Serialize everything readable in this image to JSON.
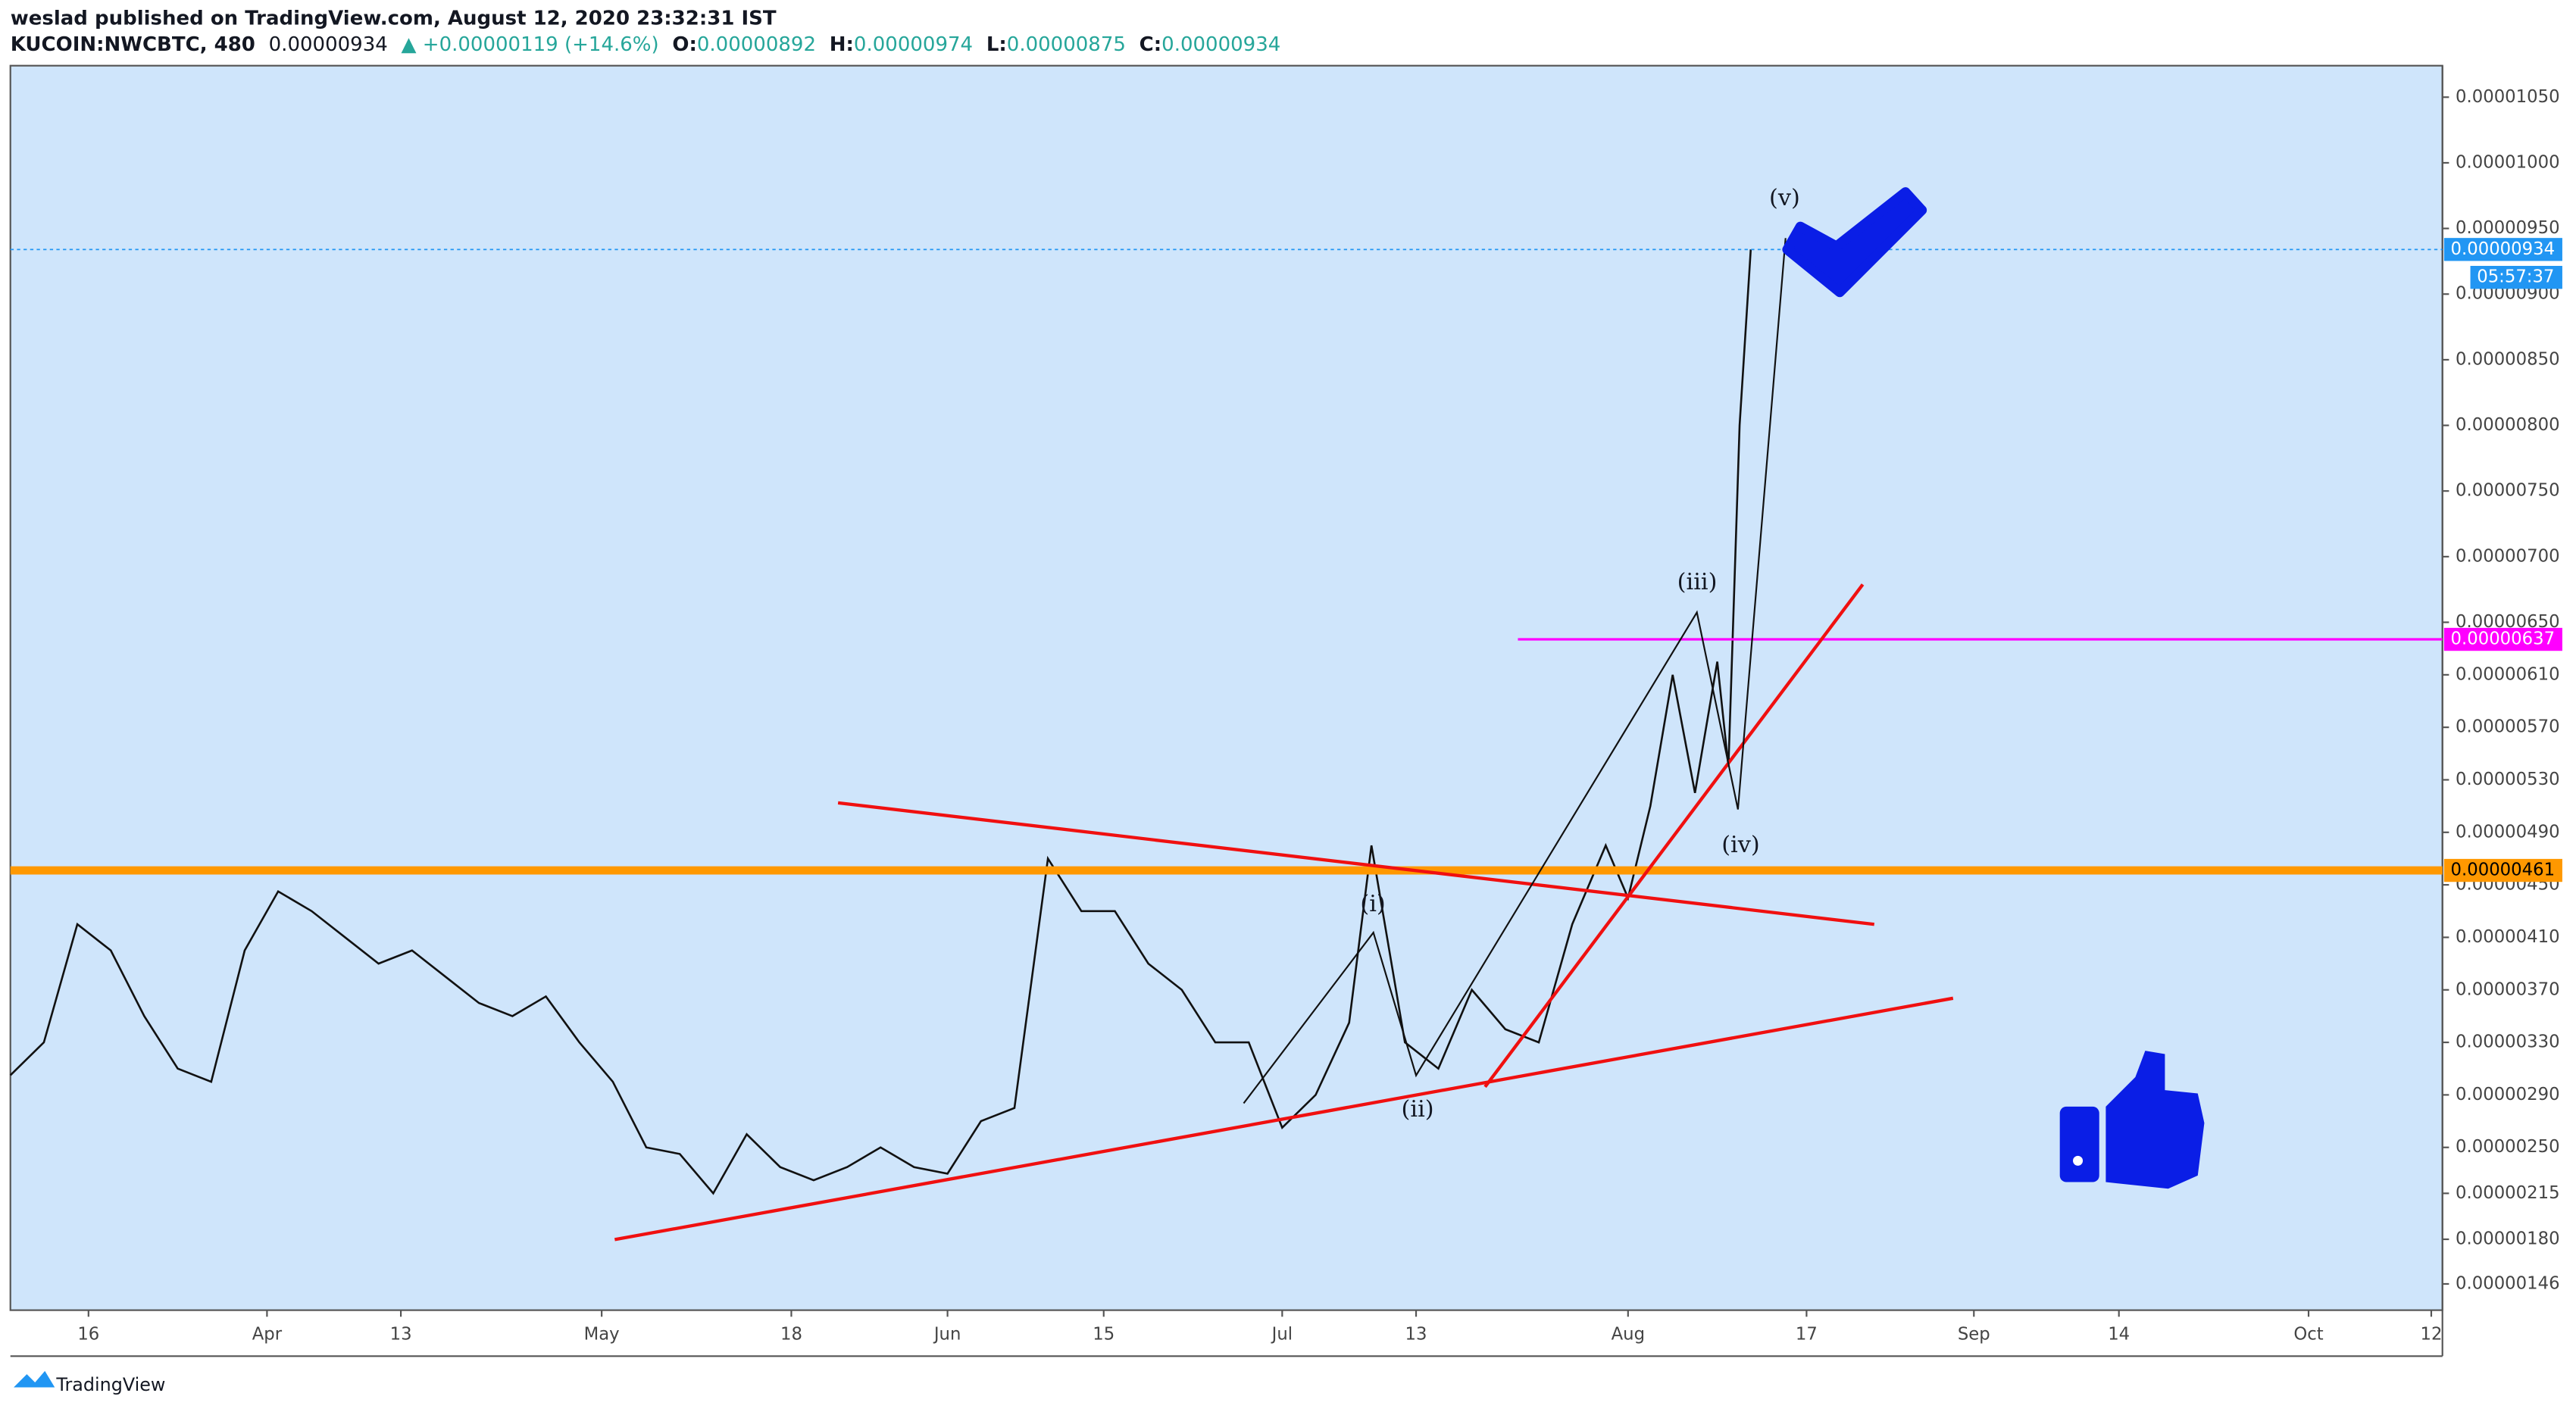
{
  "chart_data": {
    "type": "line",
    "title": "weslad published on TradingView.com, August 12, 2020 23:32:31 IST",
    "symbol": "KUCOIN:NWCBTC, 480",
    "last": "0.00000934",
    "change": "▲ +0.00000119 (+14.6%)",
    "ohlc": [
      {
        "key": "O:",
        "val": "0.00000892"
      },
      {
        "key": "H:",
        "val": "0.00000974"
      },
      {
        "key": "L:",
        "val": "0.00000875"
      },
      {
        "key": "C:",
        "val": "0.00000934"
      }
    ],
    "countdown": "05:57:37",
    "brand": "TradingView",
    "annotations": [
      "(i)",
      "(ii)",
      "(iii)",
      "(iv)",
      "(v)"
    ],
    "x": [
      "03-09",
      "03-12",
      "03-15",
      "03-18",
      "03-21",
      "03-24",
      "03-27",
      "03-30",
      "04-02",
      "04-05",
      "04-08",
      "04-11",
      "04-14",
      "04-17",
      "04-20",
      "04-23",
      "04-26",
      "04-29",
      "05-02",
      "05-05",
      "05-08",
      "05-11",
      "05-14",
      "05-17",
      "05-20",
      "05-23",
      "05-26",
      "05-29",
      "06-01",
      "06-04",
      "06-07",
      "06-10",
      "06-13",
      "06-16",
      "06-19",
      "06-22",
      "06-25",
      "06-28",
      "07-01",
      "07-04",
      "07-07",
      "07-09",
      "07-12",
      "07-15",
      "07-18",
      "07-21",
      "07-24",
      "07-27",
      "07-30",
      "08-01",
      "08-03",
      "08-05",
      "08-07",
      "08-09",
      "08-10",
      "08-11",
      "08-12"
    ],
    "series": [
      {
        "name": "NWCBTC",
        "color": "#111111",
        "values": [
          3.05e-06,
          3.3e-06,
          4.2e-06,
          4e-06,
          3.5e-06,
          3.1e-06,
          3e-06,
          4e-06,
          4.45e-06,
          4.3e-06,
          4.1e-06,
          3.9e-06,
          4e-06,
          3.8e-06,
          3.6e-06,
          3.5e-06,
          3.65e-06,
          3.3e-06,
          3e-06,
          2.5e-06,
          2.45e-06,
          2.15e-06,
          2.6e-06,
          2.35e-06,
          2.25e-06,
          2.35e-06,
          2.5e-06,
          2.35e-06,
          2.3e-06,
          2.7e-06,
          2.8e-06,
          4.7e-06,
          4.3e-06,
          4.3e-06,
          3.9e-06,
          3.7e-06,
          3.3e-06,
          3.3e-06,
          2.65e-06,
          2.9e-06,
          3.45e-06,
          4.8e-06,
          3.3e-06,
          3.1e-06,
          3.7e-06,
          3.4e-06,
          3.3e-06,
          4.2e-06,
          4.8e-06,
          4.4e-06,
          5.1e-06,
          6.1e-06,
          5.2e-06,
          6.2e-06,
          5.4e-06,
          8e-06,
          9.34e-06
        ]
      }
    ],
    "xlim": [
      "03-09",
      "10-13"
    ],
    "xticks": [
      {
        "value": "03-16",
        "label": "16"
      },
      {
        "value": "04-01",
        "label": "Apr"
      },
      {
        "value": "04-13",
        "label": "13"
      },
      {
        "value": "05-01",
        "label": "May"
      },
      {
        "value": "05-18",
        "label": "18"
      },
      {
        "value": "06-01",
        "label": "Jun"
      },
      {
        "value": "06-15",
        "label": "15"
      },
      {
        "value": "07-01",
        "label": "Jul"
      },
      {
        "value": "07-13",
        "label": "13"
      },
      {
        "value": "08-01",
        "label": "Aug"
      },
      {
        "value": "08-17",
        "label": "17"
      },
      {
        "value": "09-01",
        "label": "Sep"
      },
      {
        "value": "09-14",
        "label": "14"
      },
      {
        "value": "10-01",
        "label": "Oct"
      },
      {
        "value": "10-12",
        "label": "12"
      }
    ],
    "ylim": [
      1.26e-06,
      1.074e-05
    ],
    "yticks": [
      {
        "value": 1.05e-05,
        "label": "0.00001050"
      },
      {
        "value": 1e-05,
        "label": "0.00001000"
      },
      {
        "value": 9.5e-06,
        "label": "0.00000950"
      },
      {
        "value": 9e-06,
        "label": "0.00000900"
      },
      {
        "value": 8.5e-06,
        "label": "0.00000850"
      },
      {
        "value": 8e-06,
        "label": "0.00000800"
      },
      {
        "value": 7.5e-06,
        "label": "0.00000750"
      },
      {
        "value": 7e-06,
        "label": "0.00000700"
      },
      {
        "value": 6.5e-06,
        "label": "0.00000650"
      },
      {
        "value": 6.1e-06,
        "label": "0.00000610"
      },
      {
        "value": 5.7e-06,
        "label": "0.00000570"
      },
      {
        "value": 5.3e-06,
        "label": "0.00000530"
      },
      {
        "value": 4.9e-06,
        "label": "0.00000490"
      },
      {
        "value": 4.5e-06,
        "label": "0.00000450"
      },
      {
        "value": 4.1e-06,
        "label": "0.00000410"
      },
      {
        "value": 3.7e-06,
        "label": "0.00000370"
      },
      {
        "value": 3.3e-06,
        "label": "0.00000330"
      },
      {
        "value": 2.9e-06,
        "label": "0.00000290"
      },
      {
        "value": 2.5e-06,
        "label": "0.00000250"
      },
      {
        "value": 2.15e-06,
        "label": "0.00000215"
      },
      {
        "value": 1.8e-06,
        "label": "0.00000180"
      },
      {
        "value": 1.46e-06,
        "label": "0.00000146"
      }
    ],
    "levels": [
      {
        "value": 9.34e-06,
        "label": "0.00000934",
        "color": "#2196f3"
      },
      {
        "value": 6.37e-06,
        "label": "0.00000637",
        "color": "#ff00ff"
      },
      {
        "value": 4.61e-06,
        "label": "0.00000461",
        "color": "#ff9800"
      }
    ]
  }
}
